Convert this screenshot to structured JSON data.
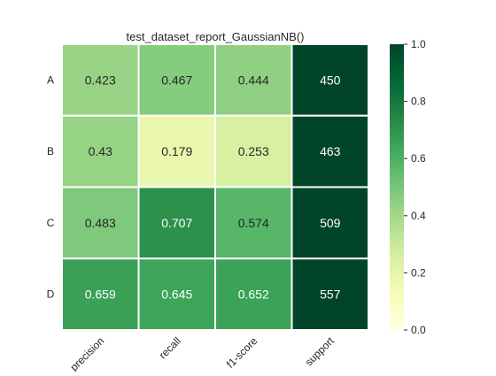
{
  "chart_data": {
    "type": "heatmap",
    "title": "test_dataset_report_GaussianNB()",
    "rows": [
      "A",
      "B",
      "C",
      "D"
    ],
    "columns": [
      "precision",
      "recall",
      "f1-score",
      "support"
    ],
    "values": [
      [
        0.423,
        0.467,
        0.444,
        450
      ],
      [
        0.43,
        0.179,
        0.253,
        463
      ],
      [
        0.483,
        0.707,
        0.574,
        509
      ],
      [
        0.659,
        0.645,
        0.652,
        557
      ]
    ],
    "labels": [
      [
        "0.423",
        "0.467",
        "0.444",
        "450"
      ],
      [
        "0.43",
        "0.179",
        "0.253",
        "463"
      ],
      [
        "0.483",
        "0.707",
        "0.574",
        "509"
      ],
      [
        "0.659",
        "0.645",
        "0.652",
        "557"
      ]
    ],
    "color_range": [
      0,
      1
    ],
    "colormap": [
      "#ffffe5",
      "#f7fcb9",
      "#d9f0a3",
      "#addd8e",
      "#78c679",
      "#41ab5d",
      "#238443",
      "#006837",
      "#004529"
    ],
    "colorbar": {
      "ticks": [
        0.0,
        0.2,
        0.4,
        0.6,
        0.8,
        1.0
      ],
      "tick_labels": [
        "0.0",
        "0.2",
        "0.4",
        "0.6",
        "0.8",
        "1.0"
      ]
    },
    "grid_line_color": "#ffffff"
  }
}
